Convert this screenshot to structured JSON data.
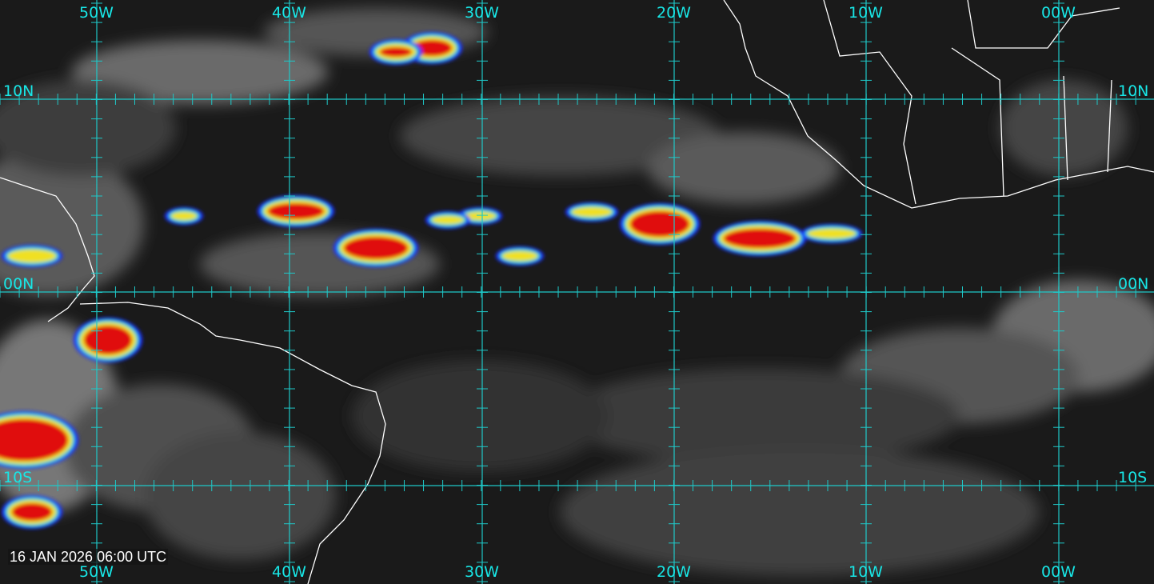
{
  "map": {
    "timestamp": "16 JAN 2026 06:00 UTC",
    "longitude_labels": [
      "50W",
      "40W",
      "30W",
      "20W",
      "10W",
      "00W"
    ],
    "latitude_labels": [
      "10N",
      "00N",
      "10S"
    ],
    "grid_color": "#1fc8c8",
    "label_color": "#18e6e6",
    "coastline_color": "#ffffff",
    "imagery": "infrared satellite with enhanced convective colors (blue-green-yellow-red)"
  }
}
